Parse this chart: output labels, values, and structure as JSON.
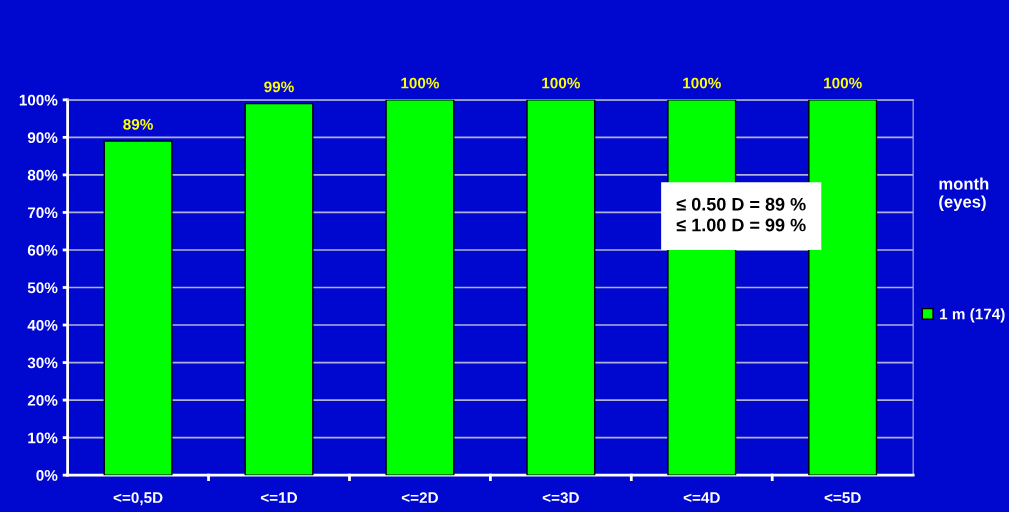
{
  "chart_data": {
    "type": "bar",
    "categories": [
      "<=0,5D",
      "<=1D",
      "<=2D",
      "<=3D",
      "<=4D",
      "<=5D"
    ],
    "series": [
      {
        "name": "1 m (174)",
        "color": "#00ff00",
        "values": [
          89,
          99,
          100,
          100,
          100,
          100
        ]
      }
    ],
    "value_labels": [
      "89%",
      "99%",
      "100%",
      "100%",
      "100%",
      "100%"
    ],
    "ylim": [
      0,
      100
    ],
    "yticks": [
      {
        "value": 0,
        "label": "0%"
      },
      {
        "value": 10,
        "label": "10%"
      },
      {
        "value": 20,
        "label": "20%"
      },
      {
        "value": 30,
        "label": "30%"
      },
      {
        "value": 40,
        "label": "40%"
      },
      {
        "value": 50,
        "label": "50%"
      },
      {
        "value": 60,
        "label": "60%"
      },
      {
        "value": 70,
        "label": "70%"
      },
      {
        "value": 80,
        "label": "80%"
      },
      {
        "value": 90,
        "label": "90%"
      },
      {
        "value": 100,
        "label": "100%"
      }
    ],
    "grid": "y",
    "legend": "right",
    "legend_title": "month\n(eyes)",
    "annotations": [
      "≤ 0.50 D = 89 %",
      "≤ 1.00 D = 99 %"
    ]
  }
}
